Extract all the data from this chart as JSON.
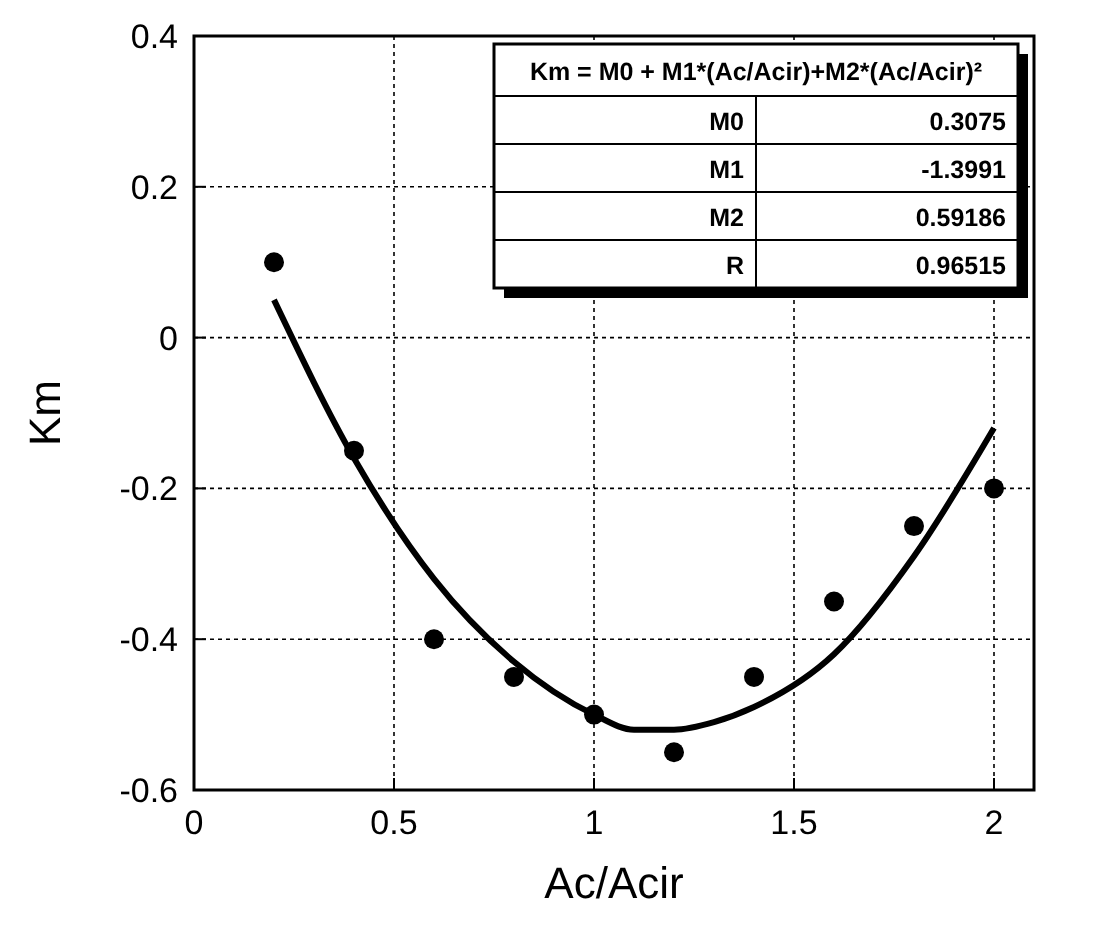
{
  "chart_data": {
    "type": "scatter",
    "xlabel": "Ac/Acir",
    "ylabel": "Km",
    "xlim": [
      0,
      2.1
    ],
    "ylim": [
      -0.6,
      0.4
    ],
    "xticks": [
      0,
      0.5,
      1,
      1.5,
      2
    ],
    "yticks": [
      -0.6,
      -0.4,
      -0.2,
      0,
      0.2,
      0.4
    ],
    "grid": true,
    "series": [
      {
        "type": "scatter",
        "marker": "circle",
        "color": "#000000",
        "x": [
          0.2,
          0.4,
          0.6,
          0.8,
          1.0,
          1.2,
          1.4,
          1.6,
          1.8,
          2.0
        ],
        "values": [
          0.1,
          -0.15,
          -0.4,
          -0.45,
          -0.5,
          -0.55,
          -0.45,
          -0.35,
          -0.25,
          -0.2
        ]
      },
      {
        "type": "line",
        "marker": "none",
        "color": "#000000",
        "line_style": "solid",
        "x": [
          0.2,
          0.4,
          0.6,
          0.8,
          1.0,
          1.1,
          1.2,
          1.3,
          1.4,
          1.6,
          1.8,
          2.0
        ],
        "values": [
          0.05,
          -0.16,
          -0.32,
          -0.43,
          -0.5,
          -0.52,
          -0.52,
          -0.51,
          -0.49,
          -0.42,
          -0.29,
          -0.12
        ]
      }
    ],
    "annotations": [
      "Km = M0 + M1*(Ac/Acir)+M2*(Ac/Acir)²",
      "M0",
      "0.3075",
      "M1",
      "-1.3991",
      "M2",
      "0.59186",
      "R",
      "0.96515"
    ]
  }
}
